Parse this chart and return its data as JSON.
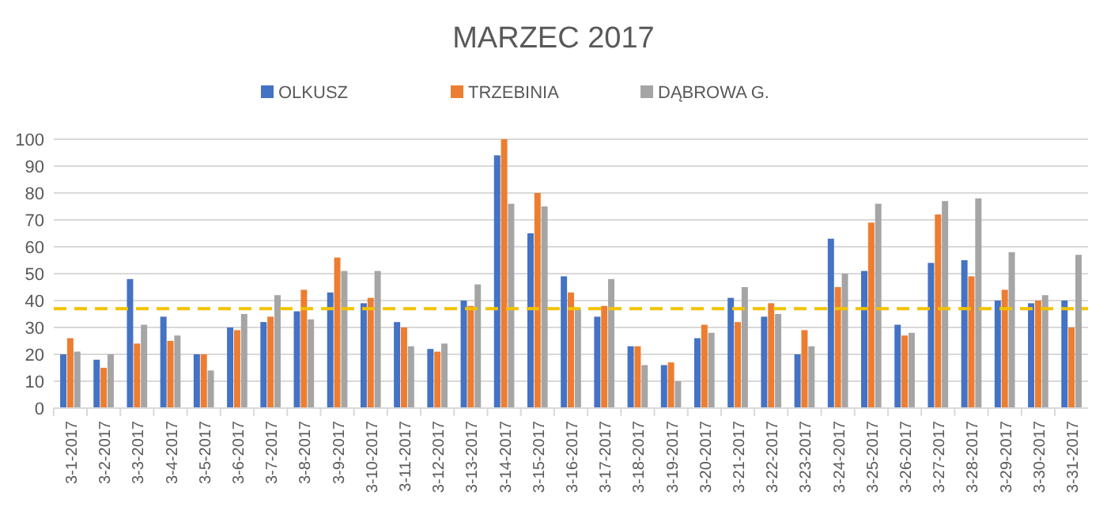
{
  "chart_data": {
    "type": "bar",
    "title": "MARZEC 2017",
    "categories": [
      "3-1-2017",
      "3-2-2017",
      "3-3-2017",
      "3-4-2017",
      "3-5-2017",
      "3-6-2017",
      "3-7-2017",
      "3-8-2017",
      "3-9-2017",
      "3-10-2017",
      "3-11-2017",
      "3-12-2017",
      "3-13-2017",
      "3-14-2017",
      "3-15-2017",
      "3-16-2017",
      "3-17-2017",
      "3-18-2017",
      "3-19-2017",
      "3-20-2017",
      "3-21-2017",
      "3-22-2017",
      "3-23-2017",
      "3-24-2017",
      "3-25-2017",
      "3-26-2017",
      "3-27-2017",
      "3-28-2017",
      "3-29-2017",
      "3-30-2017",
      "3-31-2017"
    ],
    "series": [
      {
        "name": "OLKUSZ",
        "color": "#4472c4",
        "values": [
          20,
          18,
          48,
          34,
          20,
          30,
          32,
          36,
          43,
          39,
          32,
          22,
          40,
          94,
          65,
          49,
          34,
          23,
          16,
          26,
          41,
          34,
          20,
          63,
          51,
          31,
          54,
          55,
          40,
          39,
          40
        ]
      },
      {
        "name": "TRZEBINIA",
        "color": "#ed7d31",
        "values": [
          26,
          15,
          24,
          25,
          20,
          29,
          34,
          44,
          56,
          41,
          30,
          21,
          38,
          100,
          80,
          43,
          38,
          23,
          17,
          31,
          32,
          39,
          29,
          45,
          69,
          27,
          72,
          49,
          44,
          40,
          30
        ]
      },
      {
        "name": "DĄBROWA G.",
        "color": "#a5a5a5",
        "values": [
          21,
          20,
          31,
          27,
          14,
          35,
          42,
          33,
          51,
          51,
          23,
          24,
          46,
          76,
          75,
          37,
          48,
          16,
          10,
          28,
          45,
          35,
          23,
          50,
          76,
          28,
          77,
          78,
          58,
          42,
          57
        ]
      }
    ],
    "ylim": [
      0,
      100
    ],
    "yticks": [
      0,
      10,
      20,
      30,
      40,
      50,
      60,
      70,
      80,
      90,
      100
    ],
    "grid": "y",
    "legend": "top",
    "ref_lines": [
      {
        "axis": "y",
        "value": 37,
        "color": "#f2c200",
        "line_style": "dashed"
      }
    ]
  }
}
